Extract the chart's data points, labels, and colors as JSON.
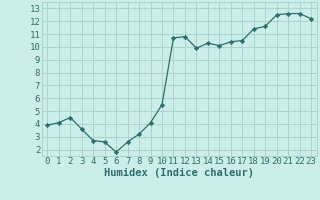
{
  "title": "",
  "xlabel": "Humidex (Indice chaleur)",
  "x": [
    0,
    1,
    2,
    3,
    4,
    5,
    6,
    7,
    8,
    9,
    10,
    11,
    12,
    13,
    14,
    15,
    16,
    17,
    18,
    19,
    20,
    21,
    22,
    23
  ],
  "y": [
    3.9,
    4.1,
    4.5,
    3.6,
    2.7,
    2.6,
    1.8,
    2.6,
    3.2,
    4.1,
    5.5,
    10.7,
    10.8,
    9.9,
    10.3,
    10.1,
    10.4,
    10.5,
    11.4,
    11.6,
    12.5,
    12.6,
    12.6,
    12.2
  ],
  "line_color": "#2d6e6e",
  "marker": "D",
  "marker_size": 2.2,
  "bg_color": "#cceee8",
  "grid_color": "#aad4cc",
  "ylim": [
    1.5,
    13.5
  ],
  "xlim": [
    -0.5,
    23.5
  ],
  "yticks": [
    2,
    3,
    4,
    5,
    6,
    7,
    8,
    9,
    10,
    11,
    12,
    13
  ],
  "xticks": [
    0,
    1,
    2,
    3,
    4,
    5,
    6,
    7,
    8,
    9,
    10,
    11,
    12,
    13,
    14,
    15,
    16,
    17,
    18,
    19,
    20,
    21,
    22,
    23
  ],
  "tick_color": "#2d6e6e",
  "label_color": "#2d6e6e",
  "xlabel_fontsize": 7.5,
  "tick_fontsize": 6.5
}
